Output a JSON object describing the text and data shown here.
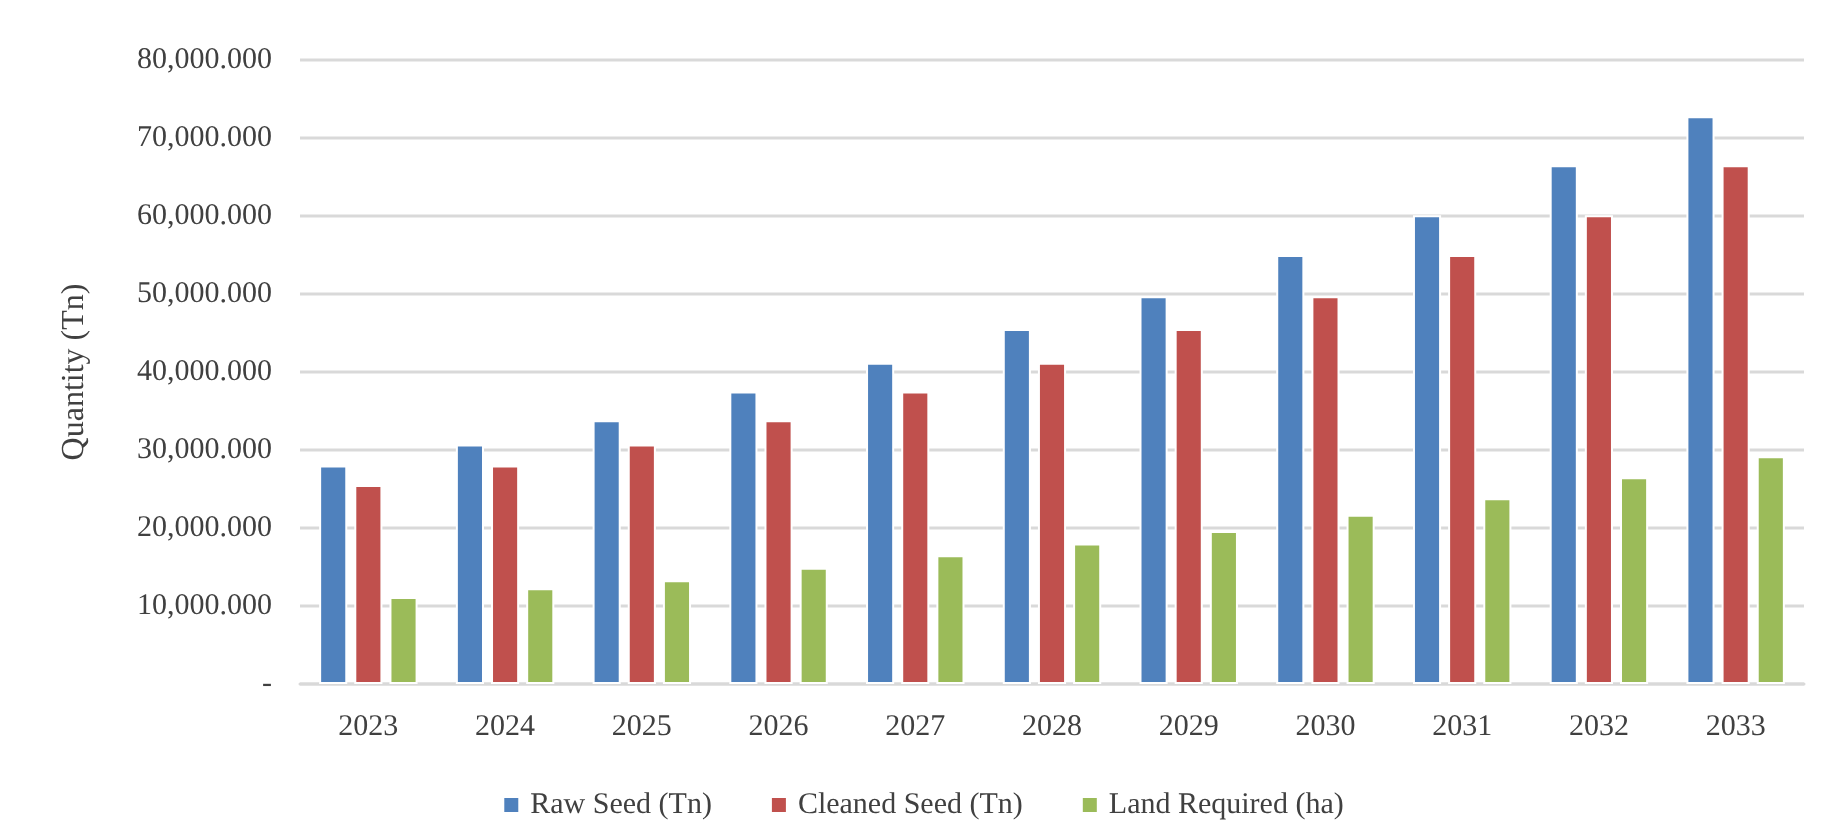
{
  "chart_data": {
    "type": "bar",
    "ylabel": "Quantity (Tn)",
    "categories": [
      "2023",
      "2024",
      "2025",
      "2026",
      "2027",
      "2028",
      "2029",
      "2030",
      "2031",
      "2032",
      "2033"
    ],
    "series": [
      {
        "name": "Raw Seed (Tn)",
        "color": "#4f81bd",
        "values": [
          28000,
          30700,
          33800,
          37500,
          41200,
          45500,
          49700,
          55000,
          60100,
          66500,
          72800
        ]
      },
      {
        "name": "Cleaned Seed (Tn)",
        "color": "#c0504d",
        "values": [
          25500,
          28000,
          30700,
          33800,
          37500,
          41200,
          45500,
          49700,
          55000,
          60100,
          66500
        ]
      },
      {
        "name": "Land Required (ha)",
        "color": "#9bbb59",
        "values": [
          11150,
          12260,
          13300,
          14900,
          16500,
          18000,
          19600,
          21700,
          23800,
          26500,
          29200
        ]
      }
    ],
    "ylim": [
      0,
      80000
    ],
    "yticks": [
      {
        "value": 0,
        "label": "-"
      },
      {
        "value": 10000,
        "label": "10,000.000"
      },
      {
        "value": 20000,
        "label": "20,000.000"
      },
      {
        "value": 30000,
        "label": "30,000.000"
      },
      {
        "value": 40000,
        "label": "40,000.000"
      },
      {
        "value": 50000,
        "label": "50,000.000"
      },
      {
        "value": 60000,
        "label": "60,000.000"
      },
      {
        "value": 70000,
        "label": "70,000.000"
      },
      {
        "value": 80000,
        "label": "80,000.000"
      }
    ],
    "grid": "y",
    "legend": "bottom"
  }
}
